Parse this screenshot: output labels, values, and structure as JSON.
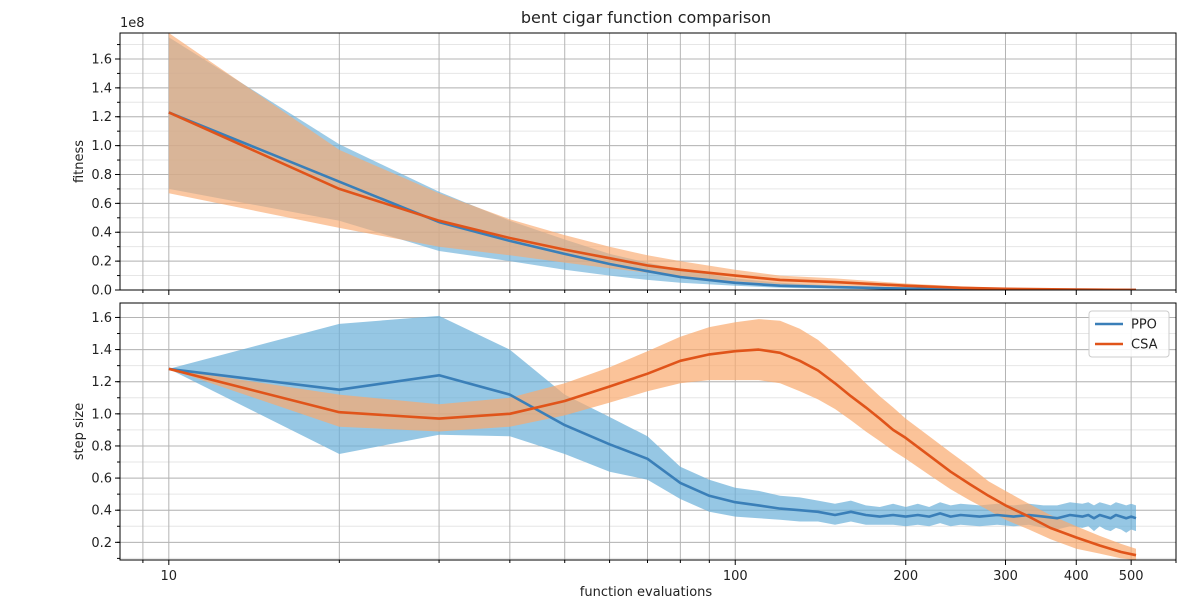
{
  "chart_data": [
    {
      "type": "line",
      "title": "bent cigar function comparison",
      "xlabel": "",
      "ylabel": "fitness",
      "yscale_label": "1e8",
      "xscale": "log",
      "xlim": [
        8.2,
        600
      ],
      "ylim": [
        0,
        1.78
      ],
      "x_ticks": [
        10,
        100,
        200,
        300,
        400,
        500
      ],
      "x_tick_labels": [
        "",
        "",
        "",
        "",
        "",
        ""
      ],
      "y_ticks": [
        0.0,
        0.2,
        0.4,
        0.6,
        0.8,
        1.0,
        1.2,
        1.4,
        1.6
      ],
      "y_tick_labels": [
        "0.0",
        "0.2",
        "0.4",
        "0.6",
        "0.8",
        "1.0",
        "1.2",
        "1.4",
        "1.6"
      ],
      "grid": true,
      "legend": "none",
      "series": [
        {
          "name": "PPO",
          "color": "#3a7fb8",
          "band_color": "#6aafd9",
          "x": [
            10,
            20,
            30,
            40,
            50,
            60,
            70,
            80,
            100,
            120,
            150,
            200,
            250,
            300,
            400,
            510
          ],
          "y": [
            1.23,
            0.75,
            0.47,
            0.34,
            0.25,
            0.18,
            0.13,
            0.09,
            0.05,
            0.03,
            0.02,
            0.01,
            0.005,
            0.003,
            0.002,
            0.001
          ],
          "lower": [
            0.7,
            0.48,
            0.27,
            0.2,
            0.14,
            0.1,
            0.07,
            0.05,
            0.03,
            0.015,
            0.008,
            0.004,
            0.002,
            0.001,
            0.0005,
            0.0002
          ],
          "upper": [
            1.75,
            1.01,
            0.68,
            0.48,
            0.35,
            0.25,
            0.19,
            0.14,
            0.08,
            0.05,
            0.03,
            0.015,
            0.008,
            0.005,
            0.003,
            0.002
          ]
        },
        {
          "name": "CSA",
          "color": "#e0541a",
          "band_color": "#f9a96e",
          "x": [
            10,
            20,
            30,
            40,
            50,
            60,
            70,
            80,
            100,
            120,
            150,
            200,
            250,
            300,
            400,
            510
          ],
          "y": [
            1.23,
            0.7,
            0.48,
            0.36,
            0.28,
            0.22,
            0.17,
            0.14,
            0.1,
            0.07,
            0.055,
            0.03,
            0.015,
            0.008,
            0.003,
            0.001
          ],
          "lower": [
            0.67,
            0.43,
            0.3,
            0.24,
            0.19,
            0.15,
            0.12,
            0.09,
            0.06,
            0.04,
            0.03,
            0.015,
            0.007,
            0.003,
            0.001,
            0.0003
          ],
          "upper": [
            1.78,
            0.97,
            0.67,
            0.49,
            0.38,
            0.3,
            0.24,
            0.2,
            0.14,
            0.1,
            0.08,
            0.045,
            0.025,
            0.013,
            0.005,
            0.002
          ]
        }
      ]
    },
    {
      "type": "line",
      "title": "",
      "xlabel": "function evaluations",
      "ylabel": "step size",
      "xscale": "log",
      "xlim": [
        8.2,
        600
      ],
      "ylim": [
        0.09,
        1.69
      ],
      "x_ticks": [
        10,
        100,
        200,
        300,
        400,
        500
      ],
      "x_tick_labels": [
        "10",
        "100",
        "200",
        "300",
        "400",
        "500"
      ],
      "y_ticks": [
        0.2,
        0.4,
        0.6,
        0.8,
        1.0,
        1.2,
        1.4,
        1.6
      ],
      "y_tick_labels": [
        "0.2",
        "0.4",
        "0.6",
        "0.8",
        "1.0",
        "1.2",
        "1.4",
        "1.6"
      ],
      "grid": true,
      "legend": "top-right",
      "series": [
        {
          "name": "PPO",
          "color": "#3a7fb8",
          "band_color": "#6aafd9",
          "x": [
            10,
            20,
            30,
            40,
            50,
            60,
            70,
            80,
            90,
            100,
            110,
            120,
            130,
            140,
            150,
            160,
            170,
            180,
            190,
            200,
            210,
            220,
            230,
            240,
            250,
            270,
            290,
            310,
            330,
            350,
            370,
            390,
            410,
            420,
            430,
            440,
            450,
            460,
            470,
            480,
            490,
            500,
            510
          ],
          "y": [
            1.28,
            1.15,
            1.24,
            1.12,
            0.93,
            0.81,
            0.72,
            0.57,
            0.49,
            0.45,
            0.43,
            0.41,
            0.4,
            0.39,
            0.37,
            0.39,
            0.37,
            0.36,
            0.37,
            0.36,
            0.37,
            0.36,
            0.38,
            0.36,
            0.37,
            0.36,
            0.37,
            0.36,
            0.37,
            0.36,
            0.35,
            0.37,
            0.36,
            0.37,
            0.35,
            0.37,
            0.36,
            0.35,
            0.37,
            0.36,
            0.35,
            0.36,
            0.35
          ],
          "lower": [
            1.28,
            0.75,
            0.87,
            0.86,
            0.75,
            0.64,
            0.59,
            0.47,
            0.39,
            0.36,
            0.35,
            0.34,
            0.33,
            0.33,
            0.31,
            0.33,
            0.31,
            0.31,
            0.31,
            0.3,
            0.31,
            0.3,
            0.32,
            0.3,
            0.31,
            0.3,
            0.31,
            0.3,
            0.31,
            0.29,
            0.28,
            0.3,
            0.29,
            0.3,
            0.27,
            0.3,
            0.28,
            0.27,
            0.29,
            0.28,
            0.26,
            0.28,
            0.27
          ],
          "upper": [
            1.28,
            1.56,
            1.61,
            1.4,
            1.12,
            0.98,
            0.86,
            0.67,
            0.59,
            0.54,
            0.52,
            0.49,
            0.48,
            0.46,
            0.44,
            0.46,
            0.43,
            0.42,
            0.44,
            0.42,
            0.44,
            0.42,
            0.45,
            0.43,
            0.44,
            0.43,
            0.44,
            0.43,
            0.44,
            0.43,
            0.43,
            0.45,
            0.44,
            0.45,
            0.43,
            0.45,
            0.44,
            0.43,
            0.45,
            0.44,
            0.43,
            0.44,
            0.43
          ]
        },
        {
          "name": "CSA",
          "color": "#e0541a",
          "band_color": "#f9a96e",
          "x": [
            10,
            20,
            30,
            40,
            50,
            60,
            70,
            80,
            90,
            100,
            110,
            120,
            130,
            140,
            150,
            160,
            170,
            180,
            190,
            200,
            220,
            240,
            260,
            280,
            300,
            330,
            360,
            400,
            440,
            480,
            510
          ],
          "y": [
            1.28,
            1.01,
            0.97,
            1.0,
            1.08,
            1.17,
            1.25,
            1.33,
            1.37,
            1.39,
            1.4,
            1.38,
            1.33,
            1.27,
            1.19,
            1.11,
            1.04,
            0.97,
            0.9,
            0.85,
            0.74,
            0.64,
            0.56,
            0.49,
            0.43,
            0.36,
            0.29,
            0.23,
            0.18,
            0.14,
            0.12
          ],
          "lower": [
            1.28,
            0.92,
            0.89,
            0.92,
            0.99,
            1.07,
            1.14,
            1.19,
            1.21,
            1.21,
            1.21,
            1.19,
            1.14,
            1.09,
            1.03,
            0.96,
            0.89,
            0.83,
            0.77,
            0.72,
            0.62,
            0.53,
            0.46,
            0.4,
            0.34,
            0.28,
            0.22,
            0.16,
            0.13,
            0.1,
            0.09
          ],
          "upper": [
            1.28,
            1.12,
            1.06,
            1.1,
            1.19,
            1.29,
            1.39,
            1.48,
            1.54,
            1.57,
            1.59,
            1.58,
            1.53,
            1.46,
            1.37,
            1.28,
            1.19,
            1.11,
            1.04,
            0.97,
            0.86,
            0.76,
            0.67,
            0.58,
            0.52,
            0.44,
            0.37,
            0.3,
            0.24,
            0.19,
            0.16
          ]
        }
      ]
    }
  ]
}
